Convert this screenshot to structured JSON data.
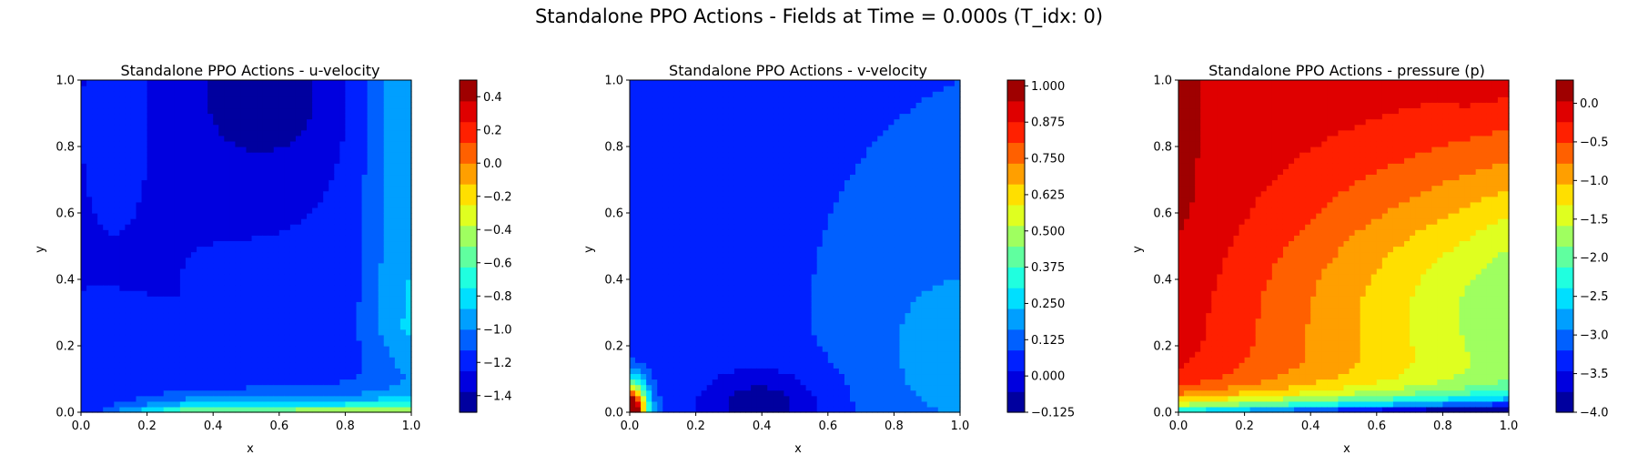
{
  "figure": {
    "suptitle": "Standalone PPO Actions - Fields at Time = 0.000s (T_idx: 0)"
  },
  "chart_data": [
    {
      "type": "heatmap",
      "title": "Standalone PPO Actions - u-velocity",
      "xlabel": "x",
      "ylabel": "y",
      "xlim": [
        0.0,
        1.0
      ],
      "ylim": [
        0.0,
        1.0
      ],
      "x_ticks": [
        "0.0",
        "0.2",
        "0.4",
        "0.6",
        "0.8",
        "1.0"
      ],
      "y_ticks": [
        "0.0",
        "0.2",
        "0.4",
        "0.6",
        "0.8",
        "1.0"
      ],
      "colormap": "jet",
      "colorbar": {
        "vmin": -1.5,
        "vmax": 0.5,
        "ticks": [
          -1.4,
          -1.2,
          -1.0,
          -0.8,
          -0.6,
          -0.4,
          -0.2,
          0.0,
          0.2,
          0.4
        ],
        "tick_labels": [
          "−1.4",
          "−1.2",
          "−1.0",
          "−0.8",
          "−0.6",
          "−0.4",
          "−0.2",
          "0.0",
          "0.2",
          "0.4"
        ]
      },
      "field": "u"
    },
    {
      "type": "heatmap",
      "title": "Standalone PPO Actions - v-velocity",
      "xlabel": "x",
      "ylabel": "y",
      "xlim": [
        0.0,
        1.0
      ],
      "ylim": [
        0.0,
        1.0
      ],
      "x_ticks": [
        "0.0",
        "0.2",
        "0.4",
        "0.6",
        "0.8",
        "1.0"
      ],
      "y_ticks": [
        "0.0",
        "0.2",
        "0.4",
        "0.6",
        "0.8",
        "1.0"
      ],
      "colormap": "jet",
      "colorbar": {
        "vmin": -0.125,
        "vmax": 1.02,
        "ticks": [
          -0.125,
          0.0,
          0.125,
          0.25,
          0.375,
          0.5,
          0.625,
          0.75,
          0.875,
          1.0
        ],
        "tick_labels": [
          "−0.125",
          "0.000",
          "0.125",
          "0.250",
          "0.375",
          "0.500",
          "0.625",
          "0.750",
          "0.875",
          "1.000"
        ]
      },
      "field": "v"
    },
    {
      "type": "heatmap",
      "title": "Standalone PPO Actions - pressure (p)",
      "xlabel": "x",
      "ylabel": "y",
      "xlim": [
        0.0,
        1.0
      ],
      "ylim": [
        0.0,
        1.0
      ],
      "x_ticks": [
        "0.0",
        "0.2",
        "0.4",
        "0.6",
        "0.8",
        "1.0"
      ],
      "y_ticks": [
        "0.0",
        "0.2",
        "0.4",
        "0.6",
        "0.8",
        "1.0"
      ],
      "colormap": "jet",
      "colorbar": {
        "vmin": -4.0,
        "vmax": 0.3,
        "ticks": [
          -4.0,
          -3.5,
          -3.0,
          -2.5,
          -2.0,
          -1.5,
          -1.0,
          -0.5,
          0.0
        ],
        "tick_labels": [
          "−4.0",
          "−3.5",
          "−3.0",
          "−2.5",
          "−2.0",
          "−1.5",
          "−1.0",
          "−0.5",
          "0.0"
        ]
      },
      "field": "p"
    }
  ]
}
